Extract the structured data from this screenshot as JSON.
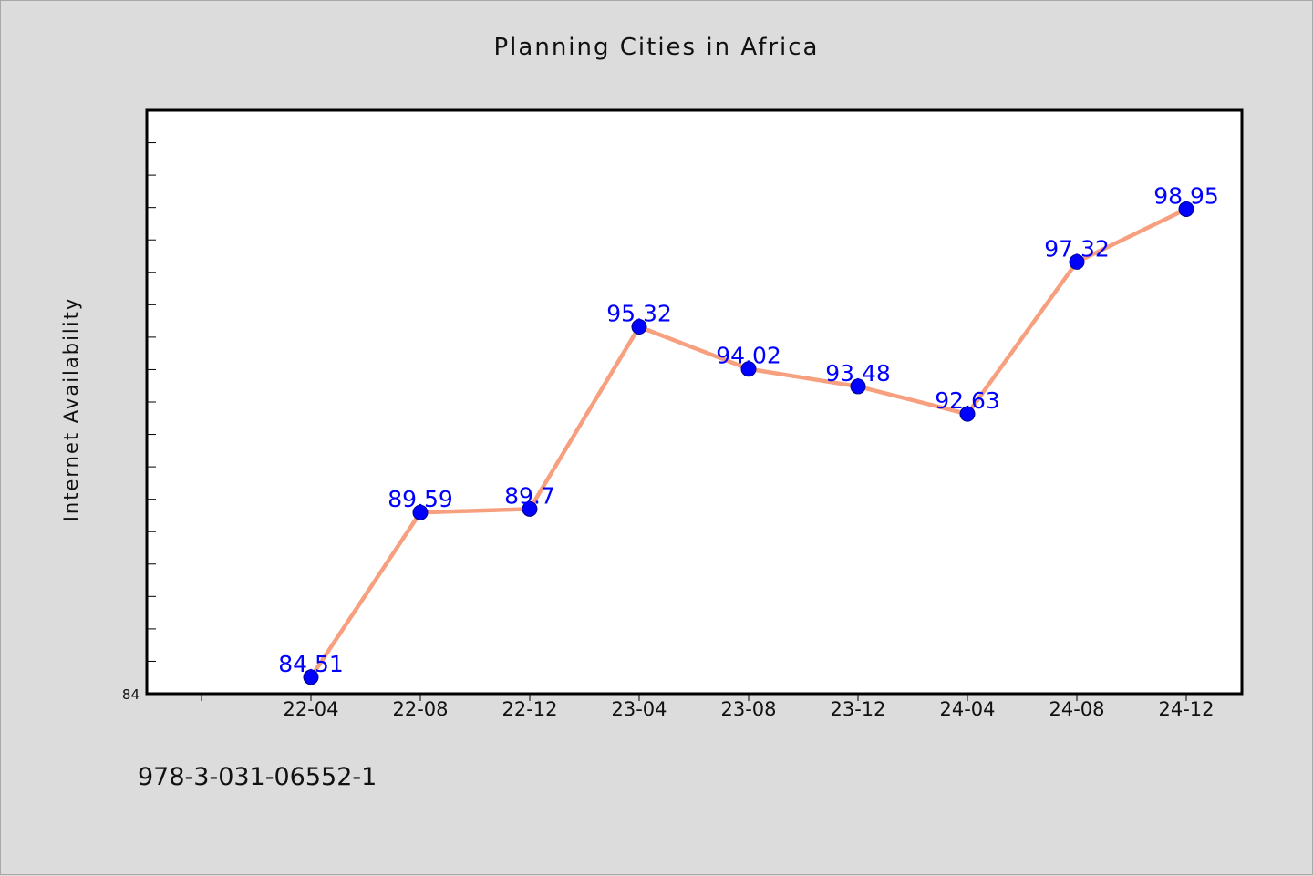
{
  "footer": {
    "code": "978-3-031-06552-1"
  },
  "colors": {
    "background": "#dcdcdc",
    "plot_area": "#ffffff",
    "line": "#f7a07f",
    "marker": "#0000ff",
    "label": "#0000ff"
  },
  "chart_data": {
    "type": "line",
    "title": "Planning Cities in Africa",
    "xlabel": "",
    "ylabel": "Internet Availability",
    "categories": [
      "22-04",
      "22-08",
      "22-12",
      "23-04",
      "23-08",
      "23-12",
      "24-04",
      "24-08",
      "24-12"
    ],
    "series": [
      {
        "values": [
          84.51,
          89.59,
          89.7,
          95.32,
          94.02,
          93.48,
          92.63,
          97.32,
          98.95
        ]
      }
    ],
    "value_labels": [
      "84.51",
      "89.59",
      "89.7",
      "95.32",
      "94.02",
      "93.48",
      "92.63",
      "97.32",
      "98.95"
    ],
    "ylim": [
      84,
      102
    ],
    "yticks_labeled": [
      "84"
    ],
    "grid": false,
    "legend": "none"
  }
}
